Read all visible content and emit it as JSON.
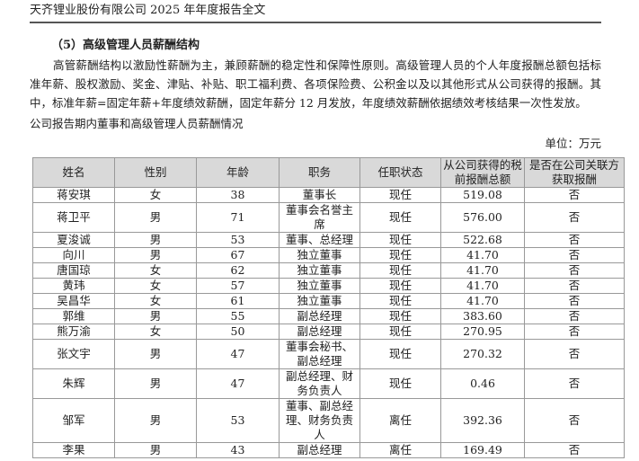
{
  "header": "天齐锂业股份有限公司 2025 年年度报告全文",
  "section_title": "（5）高级管理人员薪酬结构",
  "paragraph": "高管薪酬结构以激励性薪酬为主，兼顾薪酬的稳定性和保障性原则。高级管理人员的个人年度报酬总额包括标准年薪、股权激励、奖金、津贴、补贴、职工福利费、各项保险费、公积金以及以其他形式从公司获得的报酬。其中，标准年薪=固定年薪+年度绩效薪酬，固定年薪分 12 月发放，年度绩效薪酬依据绩效考核结果一次性发放。",
  "table_caption": "公司报告期内董事和高级管理人员薪酬情况",
  "unit": "单位：万元",
  "columns": [
    "姓名",
    "性别",
    "年龄",
    "职务",
    "任职状态",
    "从公司获得的税前报酬总额",
    "是否在公司关联方获取报酬"
  ],
  "rows": [
    [
      "蒋安琪",
      "女",
      "38",
      "董事长",
      "现任",
      "519.08",
      "否"
    ],
    [
      "蒋卫平",
      "男",
      "71",
      "董事会名誉主席",
      "现任",
      "576.00",
      "否"
    ],
    [
      "夏浚诚",
      "男",
      "53",
      "董事、总经理",
      "现任",
      "522.68",
      "否"
    ],
    [
      "向川",
      "男",
      "67",
      "独立董事",
      "现任",
      "41.70",
      "否"
    ],
    [
      "唐国琼",
      "女",
      "62",
      "独立董事",
      "现任",
      "41.70",
      "否"
    ],
    [
      "黄玮",
      "女",
      "57",
      "独立董事",
      "现任",
      "41.70",
      "否"
    ],
    [
      "吴昌华",
      "女",
      "61",
      "独立董事",
      "现任",
      "41.70",
      "否"
    ],
    [
      "郭维",
      "男",
      "55",
      "副总经理",
      "现任",
      "383.60",
      "否"
    ],
    [
      "熊万渝",
      "女",
      "50",
      "副总经理",
      "现任",
      "270.95",
      "否"
    ],
    [
      "张文宇",
      "男",
      "47",
      "董事会秘书、副总经理",
      "现任",
      "270.32",
      "否"
    ],
    [
      "朱辉",
      "男",
      "47",
      "副总经理、财务负责人",
      "现任",
      "0.46",
      "否"
    ],
    [
      "邹军",
      "男",
      "53",
      "董事、副总经理、财务负责人",
      "离任",
      "392.36",
      "否"
    ],
    [
      "李果",
      "男",
      "43",
      "副总经理",
      "离任",
      "169.49",
      "否"
    ]
  ]
}
